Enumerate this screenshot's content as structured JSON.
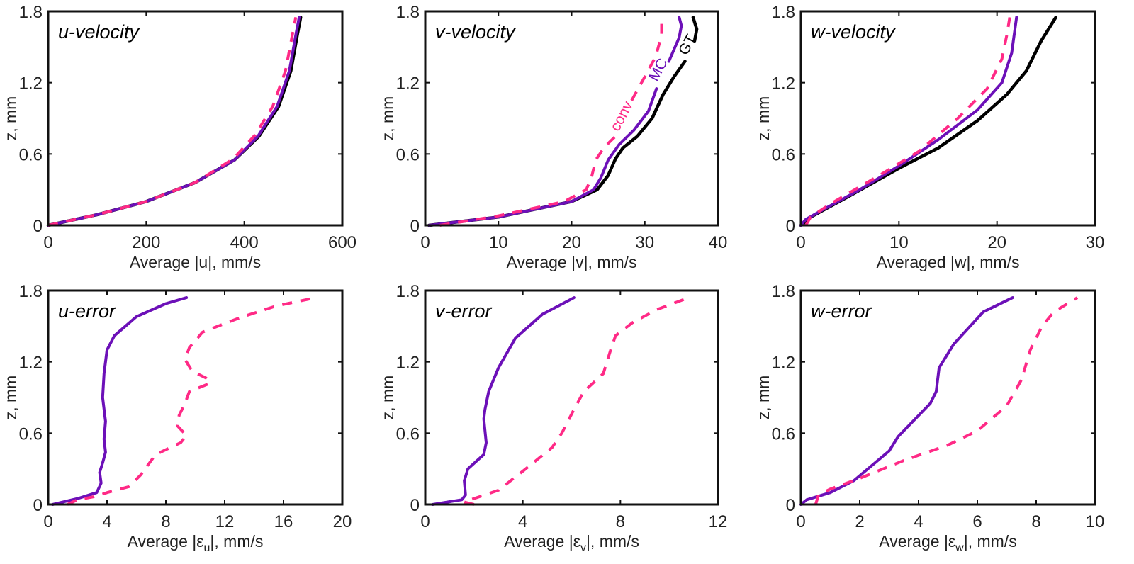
{
  "colors": {
    "GT": "#000000",
    "MC": "#6c10b8",
    "conv": "#ff2a86"
  },
  "chart_data": [
    {
      "type": "line",
      "title": "u-velocity",
      "xlabel": [
        {
          "text": "Average |u|, mm/s"
        }
      ],
      "ylabel": "z, mm",
      "xlim": [
        0,
        600
      ],
      "ylim": [
        0,
        1.8
      ],
      "xticks": [
        "0",
        "200",
        "400",
        "600"
      ],
      "yticks": [
        "0",
        "0.6",
        "1.2",
        "1.8"
      ],
      "series": [
        {
          "key": "GT",
          "style": "solid",
          "points": [
            [
              0,
              0
            ],
            [
              100,
              0.09
            ],
            [
              200,
              0.2
            ],
            [
              300,
              0.36
            ],
            [
              380,
              0.55
            ],
            [
              430,
              0.75
            ],
            [
              470,
              1.0
            ],
            [
              495,
              1.3
            ],
            [
              508,
              1.6
            ],
            [
              515,
              1.75
            ]
          ]
        },
        {
          "key": "MC",
          "style": "solid",
          "points": [
            [
              0,
              0
            ],
            [
              100,
              0.09
            ],
            [
              200,
              0.2
            ],
            [
              300,
              0.36
            ],
            [
              380,
              0.55
            ],
            [
              428,
              0.75
            ],
            [
              467,
              1.0
            ],
            [
              492,
              1.3
            ],
            [
              505,
              1.6
            ],
            [
              512,
              1.75
            ]
          ]
        },
        {
          "key": "conv",
          "style": "dashed",
          "points": [
            [
              0,
              0
            ],
            [
              100,
              0.09
            ],
            [
              200,
              0.2
            ],
            [
              300,
              0.36
            ],
            [
              378,
              0.56
            ],
            [
              422,
              0.76
            ],
            [
              458,
              1.0
            ],
            [
              484,
              1.3
            ],
            [
              498,
              1.6
            ],
            [
              505,
              1.75
            ]
          ]
        }
      ]
    },
    {
      "type": "line",
      "title": "v-velocity",
      "xlabel": [
        {
          "text": "Average |v|, mm/s"
        }
      ],
      "ylabel": "z, mm",
      "xlim": [
        0,
        40
      ],
      "ylim": [
        0,
        1.8
      ],
      "xticks": [
        "0",
        "10",
        "20",
        "30",
        "40"
      ],
      "yticks": [
        "0",
        "0.6",
        "1.2",
        "1.8"
      ],
      "annotations": [
        {
          "text": "conv",
          "key": "conv",
          "x": 27.4,
          "y": 0.9
        },
        {
          "text": "MC",
          "key": "MC",
          "x": 32.4,
          "y": 1.29
        },
        {
          "text": "GT",
          "key": "GT",
          "x": 36.4,
          "y": 1.5
        }
      ],
      "series": [
        {
          "key": "GT",
          "style": "solid",
          "points": [
            [
              0.5,
              0
            ],
            [
              10,
              0.07
            ],
            [
              20,
              0.2
            ],
            [
              23.5,
              0.3
            ],
            [
              25,
              0.42
            ],
            [
              26,
              0.56
            ],
            [
              27,
              0.65
            ],
            [
              29,
              0.75
            ],
            [
              31,
              0.9
            ],
            [
              32.5,
              1.1
            ],
            [
              34,
              1.25
            ],
            [
              35.5,
              1.38
            ]
          ]
        },
        {
          "key": "GT",
          "style": "solid",
          "points": [
            [
              36.8,
              1.55
            ],
            [
              37.1,
              1.65
            ],
            [
              36.6,
              1.75
            ]
          ]
        },
        {
          "key": "MC",
          "style": "solid",
          "points": [
            [
              0.5,
              0
            ],
            [
              10,
              0.07
            ],
            [
              20,
              0.2
            ],
            [
              23,
              0.3
            ],
            [
              24,
              0.4
            ],
            [
              25,
              0.55
            ],
            [
              26.5,
              0.68
            ],
            [
              28.5,
              0.8
            ],
            [
              30.5,
              0.96
            ],
            [
              31.6,
              1.15
            ]
          ]
        },
        {
          "key": "MC",
          "style": "solid",
          "points": [
            [
              33.3,
              1.38
            ],
            [
              34.7,
              1.58
            ],
            [
              35,
              1.68
            ],
            [
              34.7,
              1.75
            ]
          ]
        },
        {
          "key": "conv",
          "style": "dashed",
          "points": [
            [
              2,
              0
            ],
            [
              10,
              0.08
            ],
            [
              19,
              0.2
            ],
            [
              22,
              0.3
            ],
            [
              22.7,
              0.4
            ],
            [
              23.3,
              0.55
            ],
            [
              24.5,
              0.66
            ],
            [
              26,
              0.75
            ]
          ]
        },
        {
          "key": "conv",
          "style": "dashed",
          "points": [
            [
              28.2,
              1.05
            ],
            [
              30,
              1.25
            ],
            [
              31.5,
              1.42
            ],
            [
              32.3,
              1.6
            ],
            [
              32.3,
              1.75
            ]
          ]
        }
      ]
    },
    {
      "type": "line",
      "title": "w-velocity",
      "xlabel": [
        {
          "text": "Averaged |w|, mm/s"
        }
      ],
      "ylabel": "z, mm",
      "xlim": [
        0,
        30
      ],
      "ylim": [
        0,
        1.8
      ],
      "xticks": [
        "0",
        "10",
        "20",
        "30"
      ],
      "yticks": [
        "0",
        "0.6",
        "1.2",
        "1.8"
      ],
      "series": [
        {
          "key": "GT",
          "style": "solid",
          "points": [
            [
              0,
              0
            ],
            [
              1,
              0.07
            ],
            [
              5,
              0.25
            ],
            [
              10,
              0.48
            ],
            [
              14,
              0.65
            ],
            [
              18,
              0.88
            ],
            [
              21,
              1.1
            ],
            [
              23,
              1.3
            ],
            [
              24.5,
              1.55
            ],
            [
              26,
              1.75
            ]
          ]
        },
        {
          "key": "MC",
          "style": "solid",
          "points": [
            [
              0,
              0
            ],
            [
              0.5,
              0.05
            ],
            [
              2,
              0.12
            ],
            [
              6,
              0.3
            ],
            [
              10,
              0.5
            ],
            [
              14,
              0.72
            ],
            [
              18,
              0.97
            ],
            [
              20.5,
              1.2
            ],
            [
              21.5,
              1.45
            ],
            [
              22,
              1.75
            ]
          ]
        },
        {
          "key": "conv",
          "style": "dashed",
          "points": [
            [
              0.5,
              0
            ],
            [
              1,
              0.07
            ],
            [
              3,
              0.18
            ],
            [
              8,
              0.42
            ],
            [
              12,
              0.62
            ],
            [
              16,
              0.9
            ],
            [
              19,
              1.15
            ],
            [
              20.5,
              1.4
            ],
            [
              21,
              1.6
            ],
            [
              21.3,
              1.75
            ]
          ]
        }
      ]
    },
    {
      "type": "line",
      "title": "u-error",
      "xlabel": [
        {
          "text": "Average |ε"
        },
        {
          "text": "u",
          "sub": true
        },
        {
          "text": "|, mm/s"
        }
      ],
      "ylabel": "z, mm",
      "xlim": [
        0,
        20
      ],
      "ylim": [
        0,
        1.8
      ],
      "xticks": [
        "0",
        "4",
        "8",
        "12",
        "16",
        "20"
      ],
      "yticks": [
        "0",
        "0.6",
        "1.2",
        "1.8"
      ],
      "series": [
        {
          "key": "MC",
          "style": "solid",
          "points": [
            [
              0.3,
              0
            ],
            [
              2,
              0.05
            ],
            [
              3.3,
              0.1
            ],
            [
              3.6,
              0.18
            ],
            [
              3.5,
              0.27
            ],
            [
              3.7,
              0.35
            ],
            [
              3.9,
              0.44
            ],
            [
              3.8,
              0.55
            ],
            [
              3.9,
              0.7
            ],
            [
              3.7,
              0.9
            ],
            [
              3.8,
              1.1
            ],
            [
              4,
              1.3
            ],
            [
              4.5,
              1.42
            ],
            [
              6,
              1.58
            ],
            [
              8,
              1.69
            ],
            [
              9.4,
              1.74
            ]
          ]
        },
        {
          "key": "conv",
          "style": "dashed",
          "points": [
            [
              1.3,
              0
            ],
            [
              2,
              0.04
            ],
            [
              3.3,
              0.07
            ],
            [
              4,
              0.1
            ],
            [
              5.5,
              0.15
            ],
            [
              6.3,
              0.25
            ],
            [
              7.3,
              0.42
            ],
            [
              9,
              0.52
            ],
            [
              9.4,
              0.58
            ],
            [
              8.8,
              0.66
            ],
            [
              8.9,
              0.75
            ],
            [
              9.3,
              0.85
            ],
            [
              9.6,
              0.95
            ],
            [
              11,
              1.02
            ],
            [
              10.8,
              1.06
            ],
            [
              9.8,
              1.12
            ],
            [
              9.3,
              1.22
            ],
            [
              9.6,
              1.32
            ],
            [
              10.5,
              1.45
            ],
            [
              13,
              1.57
            ],
            [
              15.5,
              1.67
            ],
            [
              18.2,
              1.74
            ]
          ]
        }
      ]
    },
    {
      "type": "line",
      "title": "v-error",
      "xlabel": [
        {
          "text": "Average |ε"
        },
        {
          "text": "v",
          "sub": true
        },
        {
          "text": "|, mm/s"
        }
      ],
      "ylabel": "z, mm",
      "xlim": [
        0,
        12
      ],
      "ylim": [
        0,
        1.8
      ],
      "xticks": [
        "0",
        "4",
        "8",
        "12"
      ],
      "yticks": [
        "0",
        "0.6",
        "1.2",
        "1.8"
      ],
      "series": [
        {
          "key": "MC",
          "style": "solid",
          "points": [
            [
              0.3,
              0
            ],
            [
              1.5,
              0.04
            ],
            [
              1.65,
              0.08
            ],
            [
              1.6,
              0.2
            ],
            [
              1.75,
              0.3
            ],
            [
              2.4,
              0.42
            ],
            [
              2.5,
              0.52
            ],
            [
              2.4,
              0.72
            ],
            [
              2.45,
              0.8
            ],
            [
              2.6,
              0.95
            ],
            [
              3.0,
              1.15
            ],
            [
              3.7,
              1.4
            ],
            [
              4.8,
              1.6
            ],
            [
              6.1,
              1.74
            ]
          ]
        },
        {
          "key": "conv",
          "style": "dashed",
          "points": [
            [
              2.0,
              0
            ],
            [
              1.6,
              0.02
            ],
            [
              2.0,
              0.05
            ],
            [
              3.0,
              0.12
            ],
            [
              4.0,
              0.28
            ],
            [
              5.2,
              0.48
            ],
            [
              5.6,
              0.6
            ],
            [
              6.1,
              0.8
            ],
            [
              6.5,
              0.95
            ],
            [
              7.3,
              1.1
            ],
            [
              7.6,
              1.3
            ],
            [
              7.8,
              1.42
            ],
            [
              8.5,
              1.53
            ],
            [
              9.5,
              1.64
            ],
            [
              10.8,
              1.74
            ]
          ]
        }
      ]
    },
    {
      "type": "line",
      "title": "w-error",
      "xlabel": [
        {
          "text": "Average |ε"
        },
        {
          "text": "w",
          "sub": true
        },
        {
          "text": "|, mm/s"
        }
      ],
      "ylabel": "z, mm",
      "xlim": [
        0,
        10
      ],
      "ylim": [
        0,
        1.8
      ],
      "xticks": [
        "0",
        "2",
        "4",
        "6",
        "8",
        "10"
      ],
      "yticks": [
        "0",
        "0.6",
        "1.2",
        "1.8"
      ],
      "series": [
        {
          "key": "MC",
          "style": "solid",
          "points": [
            [
              0,
              0
            ],
            [
              0.2,
              0.04
            ],
            [
              1,
              0.1
            ],
            [
              1.8,
              0.2
            ],
            [
              3,
              0.45
            ],
            [
              3.3,
              0.57
            ],
            [
              4.4,
              0.85
            ],
            [
              4.6,
              0.95
            ],
            [
              4.7,
              1.15
            ],
            [
              5.2,
              1.35
            ],
            [
              6.2,
              1.62
            ],
            [
              7.2,
              1.74
            ]
          ]
        },
        {
          "key": "conv",
          "style": "dashed",
          "points": [
            [
              0.5,
              0
            ],
            [
              0.6,
              0.08
            ],
            [
              1.0,
              0.13
            ],
            [
              2,
              0.22
            ],
            [
              3.5,
              0.37
            ],
            [
              5,
              0.5
            ],
            [
              6,
              0.62
            ],
            [
              7,
              0.83
            ],
            [
              7.5,
              1.05
            ],
            [
              7.8,
              1.3
            ],
            [
              8.2,
              1.5
            ],
            [
              8.6,
              1.62
            ],
            [
              9.4,
              1.74
            ]
          ]
        }
      ]
    }
  ]
}
